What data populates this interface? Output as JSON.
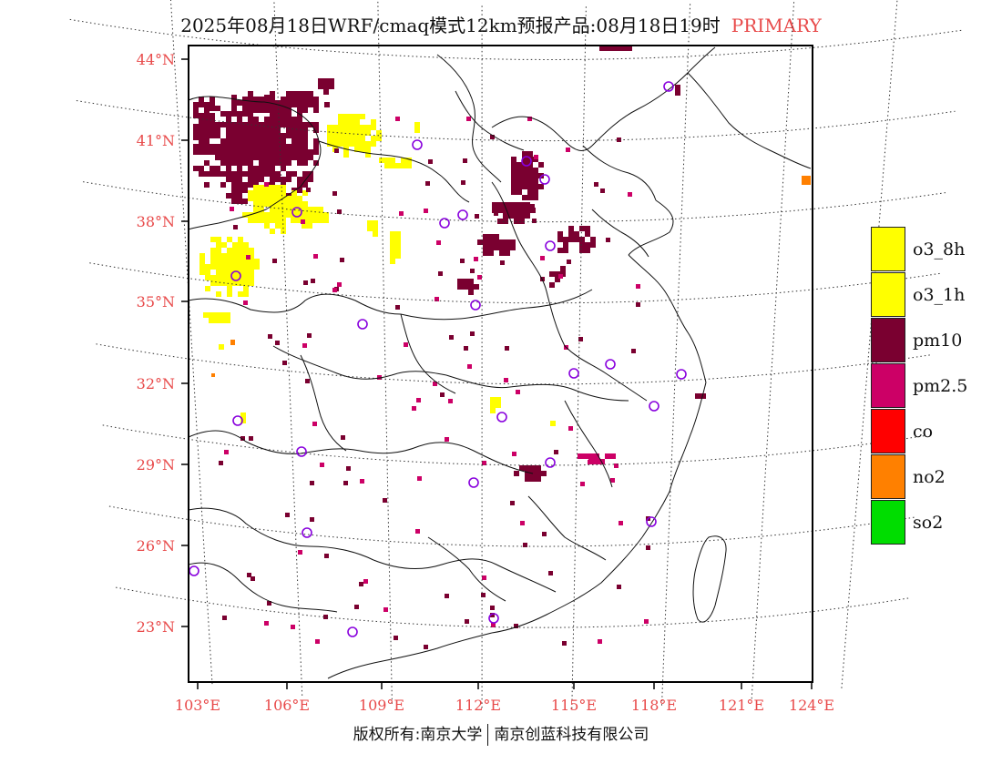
{
  "title": {
    "main": "2025年08月18日WRF/cmaq模式12km预报产品:08月18日19时",
    "tag": "PRIMARY"
  },
  "colors": {
    "label": "#e84a4a",
    "o3_8h": "#ffff00",
    "o3_1h": "#ffff00",
    "pm10": "#7a0030",
    "pm2_5": "#cc0066",
    "co": "#ff0000",
    "no2": "#ff8000",
    "so2": "#00dd00",
    "station": "#8800dd"
  },
  "map": {
    "lat_labels": [
      "44°N",
      "41°N",
      "38°N",
      "35°N",
      "32°N",
      "29°N",
      "26°N",
      "23°N"
    ],
    "lon_labels": [
      "103°E",
      "106°E",
      "109°E",
      "112°E",
      "115°E",
      "118°E",
      "121°E",
      "124°E"
    ],
    "stations": [
      {
        "lon": 118.9,
        "lat": 42.8
      },
      {
        "lon": 110.3,
        "lat": 40.8
      },
      {
        "lon": 113.3,
        "lat": 40.1
      },
      {
        "lon": 114.5,
        "lat": 39.7
      },
      {
        "lon": 105.5,
        "lat": 38.5
      },
      {
        "lon": 111.4,
        "lat": 37.9
      },
      {
        "lon": 112.6,
        "lat": 38.0
      },
      {
        "lon": 114.8,
        "lat": 37.3
      },
      {
        "lon": 103.8,
        "lat": 36.0
      },
      {
        "lon": 112.4,
        "lat": 34.8
      },
      {
        "lon": 108.8,
        "lat": 34.2
      },
      {
        "lon": 116.8,
        "lat": 32.8
      },
      {
        "lon": 115.6,
        "lat": 32.3
      },
      {
        "lon": 118.7,
        "lat": 32.0
      },
      {
        "lon": 112.8,
        "lat": 30.6
      },
      {
        "lon": 117.5,
        "lat": 30.8
      },
      {
        "lon": 104.0,
        "lat": 30.6
      },
      {
        "lon": 106.2,
        "lat": 29.5
      },
      {
        "lon": 115.2,
        "lat": 29.0
      },
      {
        "lon": 112.2,
        "lat": 28.3
      },
      {
        "lon": 106.7,
        "lat": 26.5
      },
      {
        "lon": 118.3,
        "lat": 26.0
      },
      {
        "lon": 102.7,
        "lat": 25.0
      },
      {
        "lon": 108.3,
        "lat": 22.8
      },
      {
        "lon": 113.2,
        "lat": 23.1
      }
    ],
    "ocean_pixel": {
      "lon": 123.9,
      "lat": 39.5,
      "category": "no2"
    }
  },
  "legend": [
    {
      "key": "o3_8h",
      "label": "o3_8h"
    },
    {
      "key": "o3_1h",
      "label": "o3_1h"
    },
    {
      "key": "pm10",
      "label": "pm10"
    },
    {
      "key": "pm2_5",
      "label": "pm2.5"
    },
    {
      "key": "co",
      "label": "co"
    },
    {
      "key": "no2",
      "label": "no2"
    },
    {
      "key": "so2",
      "label": "so2"
    }
  ],
  "footer": {
    "left": "版权所有:南京大学",
    "right": "南京创蓝科技有限公司"
  }
}
